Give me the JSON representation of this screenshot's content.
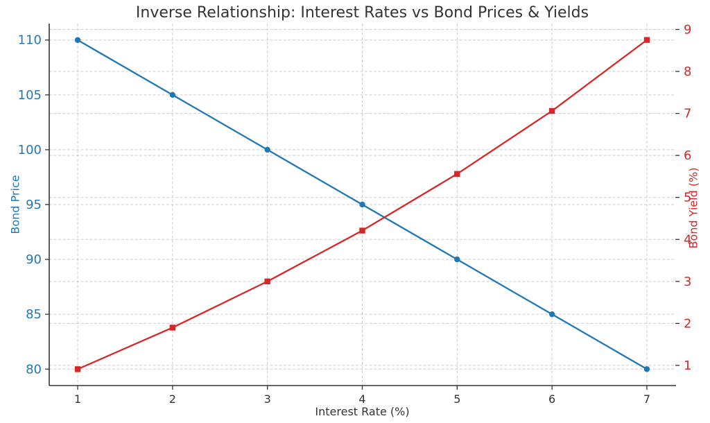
{
  "chart_data": {
    "type": "line",
    "title": "Inverse Relationship: Interest Rates vs Bond Prices & Yields",
    "xlabel": "Interest Rate (%)",
    "x": [
      1,
      2,
      3,
      4,
      5,
      6,
      7
    ],
    "xticks": [
      1,
      2,
      3,
      4,
      5,
      6,
      7
    ],
    "xlim": [
      0.7,
      7.3
    ],
    "grid": true,
    "legend": false,
    "series": [
      {
        "name": "Bond Price",
        "axis": "left",
        "values": [
          110,
          105,
          100,
          95,
          90,
          85,
          80
        ],
        "color": "#1f77b4",
        "marker": "circle"
      },
      {
        "name": "Bond Yield (%)",
        "axis": "right",
        "values": [
          0.91,
          1.9,
          3.0,
          4.21,
          5.56,
          7.06,
          8.75
        ],
        "color": "#d62728",
        "marker": "square"
      }
    ],
    "left_axis": {
      "label": "Bond Price",
      "ticks": [
        80,
        85,
        90,
        95,
        100,
        105,
        110
      ],
      "lim": [
        78.5,
        111.5
      ],
      "color": "#1f77b4"
    },
    "right_axis": {
      "label": "Bond Yield (%)",
      "ticks": [
        1,
        2,
        3,
        4,
        5,
        6,
        7,
        8,
        9
      ],
      "lim": [
        0.52,
        9.14
      ],
      "color": "#d62728"
    },
    "text_color": "#333333"
  }
}
